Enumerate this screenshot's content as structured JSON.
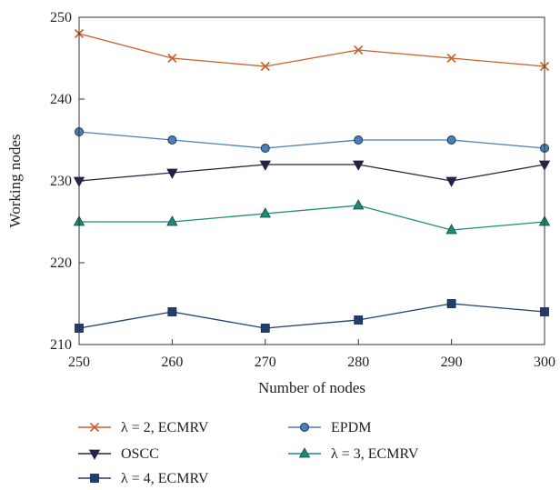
{
  "chart_data": {
    "type": "line",
    "xlabel": "Number of nodes",
    "ylabel": "Working nodes",
    "x": [
      250,
      260,
      270,
      280,
      290,
      300
    ],
    "xlim": [
      250,
      300
    ],
    "ylim": [
      210,
      250
    ],
    "xticks": [
      250,
      260,
      270,
      280,
      290,
      300
    ],
    "yticks": [
      210,
      220,
      230,
      240,
      250
    ],
    "grid": false,
    "legend_position": "bottom",
    "series": [
      {
        "name": "λ = 2, ECMRV",
        "values": [
          248,
          245,
          244,
          246,
          245,
          244
        ],
        "color": "#c8602a",
        "marker": "x"
      },
      {
        "name": "EPDM",
        "values": [
          236,
          235,
          234,
          235,
          235,
          234
        ],
        "color": "#4a7fb8",
        "marker": "circle"
      },
      {
        "name": "OSCC",
        "values": [
          230,
          231,
          232,
          232,
          230,
          232
        ],
        "color": "#2a1f45",
        "marker": "triangle-down"
      },
      {
        "name": "λ = 3, ECMRV",
        "values": [
          225,
          225,
          226,
          227,
          224,
          225
        ],
        "color": "#1f8a78",
        "marker": "triangle-up"
      },
      {
        "name": "λ = 4, ECMRV",
        "values": [
          212,
          214,
          212,
          213,
          215,
          214
        ],
        "color": "#1f3f73",
        "marker": "square"
      }
    ]
  }
}
